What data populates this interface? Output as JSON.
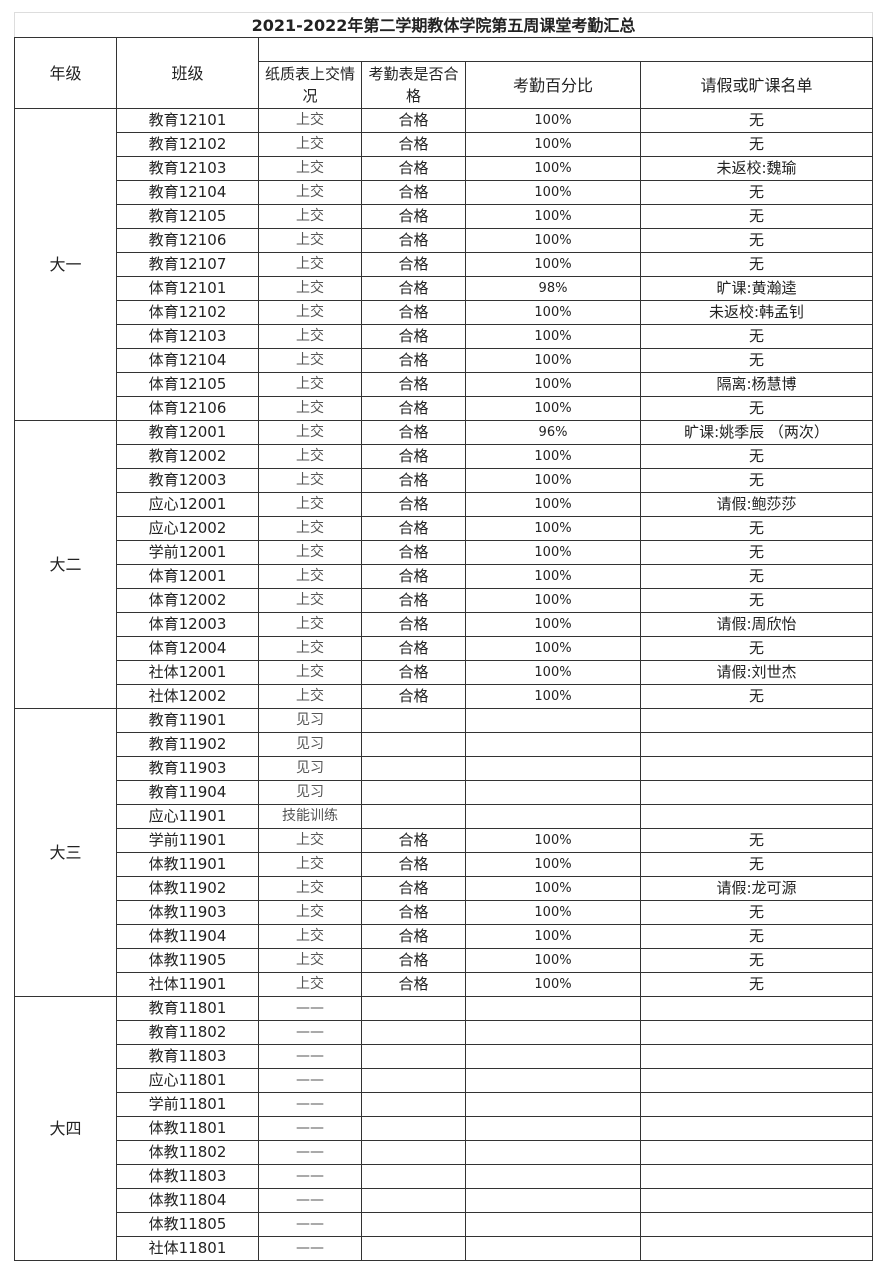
{
  "title": "2021-2022年第二学期教体学院第五周课堂考勤汇总",
  "headers": {
    "grade": "年级",
    "class": "班级",
    "paper": "纸质表上交情况",
    "qualified": "考勤表是否合格",
    "percent": "考勤百分比",
    "absence": "请假或旷课名单"
  },
  "groups": [
    {
      "grade": "大一",
      "rows": [
        [
          "教育12101",
          "上交",
          "合格",
          "100%",
          "无"
        ],
        [
          "教育12102",
          "上交",
          "合格",
          "100%",
          "无"
        ],
        [
          "教育12103",
          "上交",
          "合格",
          "100%",
          "未返校:魏瑜"
        ],
        [
          "教育12104",
          "上交",
          "合格",
          "100%",
          "无"
        ],
        [
          "教育12105",
          "上交",
          "合格",
          "100%",
          "无"
        ],
        [
          "教育12106",
          "上交",
          "合格",
          "100%",
          "无"
        ],
        [
          "教育12107",
          "上交",
          "合格",
          "100%",
          "无"
        ],
        [
          "体育12101",
          "上交",
          "合格",
          "98%",
          "旷课:黄瀚逵"
        ],
        [
          "体育12102",
          "上交",
          "合格",
          "100%",
          "未返校:韩孟钊"
        ],
        [
          "体育12103",
          "上交",
          "合格",
          "100%",
          "无"
        ],
        [
          "体育12104",
          "上交",
          "合格",
          "100%",
          "无"
        ],
        [
          "体育12105",
          "上交",
          "合格",
          "100%",
          "隔离:杨慧博"
        ],
        [
          "体育12106",
          "上交",
          "合格",
          "100%",
          "无"
        ]
      ]
    },
    {
      "grade": "大二",
      "rows": [
        [
          "教育12001",
          "上交",
          "合格",
          "96%",
          "旷课:姚季辰 （两次）"
        ],
        [
          "教育12002",
          "上交",
          "合格",
          "100%",
          "无"
        ],
        [
          "教育12003",
          "上交",
          "合格",
          "100%",
          "无"
        ],
        [
          "应心12001",
          "上交",
          "合格",
          "100%",
          "请假:鲍莎莎"
        ],
        [
          "应心12002",
          "上交",
          "合格",
          "100%",
          "无"
        ],
        [
          "学前12001",
          "上交",
          "合格",
          "100%",
          "无"
        ],
        [
          "体育12001",
          "上交",
          "合格",
          "100%",
          "无"
        ],
        [
          "体育12002",
          "上交",
          "合格",
          "100%",
          "无"
        ],
        [
          "体育12003",
          "上交",
          "合格",
          "100%",
          "请假:周欣怡"
        ],
        [
          "体育12004",
          "上交",
          "合格",
          "100%",
          "无"
        ],
        [
          "社体12001",
          "上交",
          "合格",
          "100%",
          "请假:刘世杰"
        ],
        [
          "社体12002",
          "上交",
          "合格",
          "100%",
          "无"
        ]
      ]
    },
    {
      "grade": "大三",
      "rows": [
        [
          "教育11901",
          "见习",
          "",
          "",
          ""
        ],
        [
          "教育11902",
          "见习",
          "",
          "",
          ""
        ],
        [
          "教育11903",
          "见习",
          "",
          "",
          ""
        ],
        [
          "教育11904",
          "见习",
          "",
          "",
          ""
        ],
        [
          "应心11901",
          "技能训练",
          "",
          "",
          ""
        ],
        [
          "学前11901",
          "上交",
          "合格",
          "100%",
          "无"
        ],
        [
          "体教11901",
          "上交",
          "合格",
          "100%",
          "无"
        ],
        [
          "体教11902",
          "上交",
          "合格",
          "100%",
          "请假:龙可源"
        ],
        [
          "体教11903",
          "上交",
          "合格",
          "100%",
          "无"
        ],
        [
          "体教11904",
          "上交",
          "合格",
          "100%",
          "无"
        ],
        [
          "体教11905",
          "上交",
          "合格",
          "100%",
          "无"
        ],
        [
          "社体11901",
          "上交",
          "合格",
          "100%",
          "无"
        ]
      ]
    },
    {
      "grade": "大四",
      "rows": [
        [
          "教育11801",
          "——",
          "",
          "",
          ""
        ],
        [
          "教育11802",
          "——",
          "",
          "",
          ""
        ],
        [
          "教育11803",
          "——",
          "",
          "",
          ""
        ],
        [
          "应心11801",
          "——",
          "",
          "",
          ""
        ],
        [
          "学前11801",
          "——",
          "",
          "",
          ""
        ],
        [
          "体教11801",
          "——",
          "",
          "",
          ""
        ],
        [
          "体教11802",
          "——",
          "",
          "",
          ""
        ],
        [
          "体教11803",
          "——",
          "",
          "",
          ""
        ],
        [
          "体教11804",
          "——",
          "",
          "",
          ""
        ],
        [
          "体教11805",
          "——",
          "",
          "",
          ""
        ],
        [
          "社体11801",
          "——",
          "",
          "",
          ""
        ]
      ]
    }
  ]
}
